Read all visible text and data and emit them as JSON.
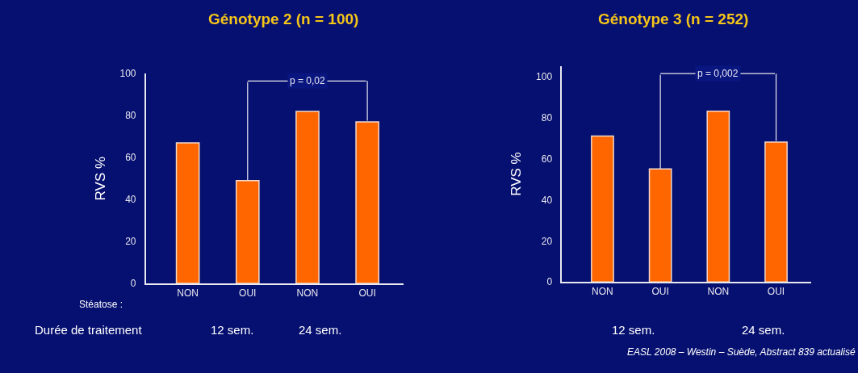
{
  "chart_data": [
    {
      "type": "bar",
      "title": "Génotype 2 (n = 100)",
      "ylabel": "RVS %",
      "categories": [
        "NON",
        "OUI",
        "NON",
        "OUI"
      ],
      "values": [
        67,
        49,
        82,
        77
      ],
      "color": "#ff6600",
      "ylim": [
        0,
        100
      ],
      "yticks": [
        0,
        20,
        40,
        60,
        80,
        100
      ],
      "grid": false,
      "annotations": [
        "p = 0,02",
        "Stéatose :",
        "Durée de traitement",
        "12 sem.",
        "24 sem."
      ]
    },
    {
      "type": "bar",
      "title": "Génotype 3 (n = 252)",
      "ylabel": "RVS %",
      "categories": [
        "NON",
        "OUI",
        "NON",
        "OUI"
      ],
      "values": [
        71,
        55,
        83,
        68
      ],
      "color": "#ff6600",
      "ylim": [
        0,
        105
      ],
      "yticks": [
        0,
        20,
        40,
        60,
        80,
        100
      ],
      "grid": false,
      "annotations": [
        "p = 0,002",
        "12 sem.",
        "24 sem.",
        "EASL 2008 – Westin – Suède, Abstract 839 actualisé"
      ]
    }
  ]
}
